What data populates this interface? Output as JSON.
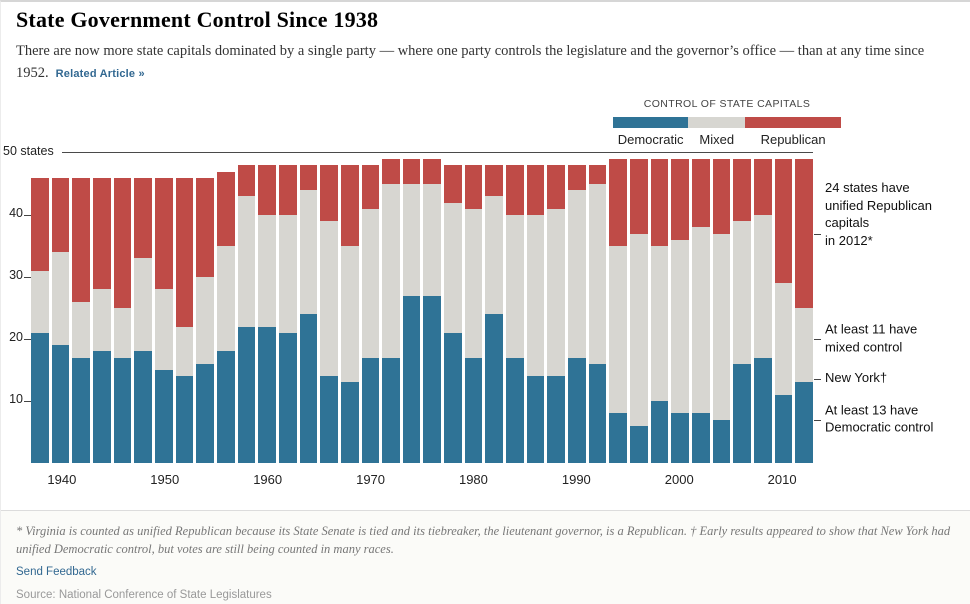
{
  "header": {
    "title": "State Government Control Since 1938",
    "subtitle": "There are now more state capitals dominated by a single party — where one party controls the legislature and the governor’s office — than at any time since 1952.",
    "related_link": "Related Article »"
  },
  "legend": {
    "title": "CONTROL OF STATE CAPITALS",
    "items": [
      {
        "label": "Democratic",
        "color": "#2f7396"
      },
      {
        "label": "Mixed",
        "color": "#d7d6d1"
      },
      {
        "label": "Republican",
        "color": "#bf4b47"
      }
    ]
  },
  "axis": {
    "y_top_label": "50 states",
    "y_ticks": [
      40,
      30,
      20,
      10
    ],
    "x_ticks": [
      1940,
      1950,
      1960,
      1970,
      1980,
      1990,
      2000,
      2010
    ]
  },
  "annotations": [
    {
      "text": "24 states have\nunified Republican\ncapitals\nin 2012*",
      "tick_value": 37,
      "label_value": 40
    },
    {
      "text": "At least 11 have\nmixed control",
      "tick_value": 20,
      "label_value": 20
    },
    {
      "text": "New York†",
      "tick_value": 13.5,
      "label_value": 13.5
    },
    {
      "text": "At least 13 have\nDemocratic control",
      "tick_value": 7,
      "label_value": 7
    }
  ],
  "chart_data": {
    "type": "bar",
    "stacked": true,
    "title": "State Government Control Since 1938",
    "ylim": [
      0,
      50
    ],
    "categories": [
      1938,
      1940,
      1942,
      1944,
      1946,
      1948,
      1950,
      1952,
      1954,
      1956,
      1958,
      1960,
      1962,
      1964,
      1966,
      1968,
      1970,
      1972,
      1974,
      1976,
      1978,
      1980,
      1982,
      1984,
      1986,
      1988,
      1990,
      1992,
      1994,
      1996,
      1998,
      2000,
      2002,
      2004,
      2006,
      2008,
      2010,
      2012
    ],
    "series": [
      {
        "name": "Democratic",
        "color": "#2f7396",
        "values": [
          21,
          19,
          17,
          18,
          17,
          18,
          15,
          14,
          16,
          18,
          22,
          22,
          21,
          24,
          14,
          13,
          17,
          17,
          27,
          27,
          21,
          17,
          24,
          17,
          14,
          14,
          17,
          16,
          8,
          6,
          10,
          8,
          8,
          7,
          16,
          17,
          11,
          13
        ]
      },
      {
        "name": "Mixed",
        "color": "#d7d6d1",
        "values": [
          10,
          15,
          9,
          10,
          8,
          15,
          13,
          8,
          14,
          17,
          21,
          18,
          19,
          20,
          25,
          22,
          24,
          28,
          18,
          18,
          21,
          24,
          19,
          23,
          26,
          27,
          27,
          29,
          27,
          31,
          25,
          28,
          30,
          30,
          23,
          23,
          18,
          12
        ]
      },
      {
        "name": "Republican",
        "color": "#bf4b47",
        "values": [
          15,
          12,
          20,
          18,
          21,
          13,
          18,
          24,
          16,
          12,
          5,
          8,
          8,
          4,
          9,
          13,
          7,
          4,
          4,
          4,
          6,
          7,
          5,
          8,
          8,
          7,
          4,
          3,
          14,
          12,
          14,
          13,
          11,
          12,
          10,
          9,
          20,
          24
        ]
      }
    ]
  },
  "footer": {
    "footnote": "* Virginia is counted as unified Republican because its State Senate is tied and its tiebreaker, the lieutenant governor, is a Republican. † Early results appeared to show that New York had unified Democratic control, but votes are still being counted in many races.",
    "feedback_link": "Send Feedback",
    "source": "Source: National Conference of State Legislatures"
  }
}
